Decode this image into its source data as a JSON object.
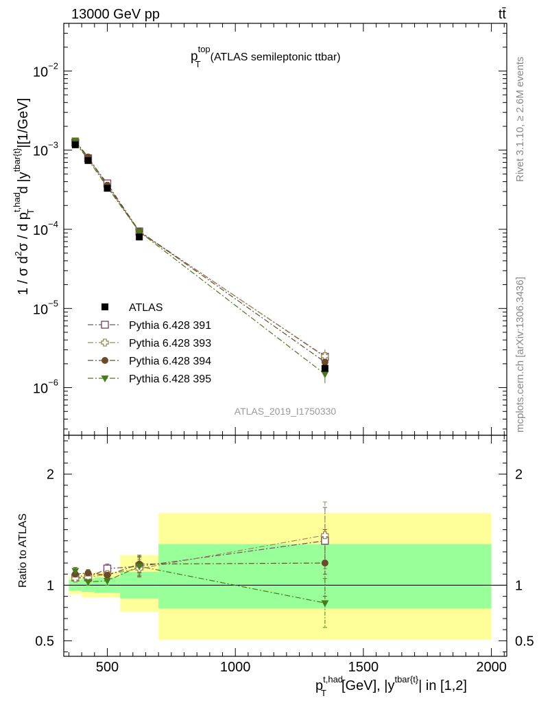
{
  "header": {
    "energy_label": "13000 GeV pp",
    "process_label": "tt̄"
  },
  "side_labels": {
    "rivet": "Rivet 3.1.10, ≥ 2.6M events",
    "mcplots": "mcplots.cern.ch [arXiv:1306.3436]"
  },
  "chart_data": [
    {
      "type": "scatter",
      "panel": "main",
      "title_main": "p",
      "title_sup": "top",
      "title_sub": "T",
      "title_rest": "(ATLAS semileptonic ttbar)",
      "watermark": "ATLAS_2019_I1750330",
      "ylabel": "1 / σ d²σ / d pT^{t,had} d |y^{tbar{t}}|[1/GeV]",
      "yscale": "log",
      "ylim": [
        2.5e-07,
        0.04
      ],
      "xlim": [
        330,
        2060
      ],
      "y_tick_labels": [
        {
          "value": 1e-06,
          "label": "10",
          "exp": "−6"
        },
        {
          "value": 1e-05,
          "label": "10",
          "exp": "−5"
        },
        {
          "value": 0.0001,
          "label": "10",
          "exp": "−4"
        },
        {
          "value": 0.001,
          "label": "10",
          "exp": "−3"
        },
        {
          "value": 0.01,
          "label": "10",
          "exp": "−2"
        }
      ],
      "legend_position": "lower-left",
      "series": [
        {
          "name": "ATLAS",
          "color": "#000000",
          "marker": "filled-square",
          "line": "none",
          "x": [
            375,
            425,
            500,
            625,
            1350
          ],
          "y": [
            0.00117,
            0.00074,
            0.00033,
            8e-05,
            1.75e-06
          ]
        },
        {
          "name": "Pythia 6.428 391",
          "color": "#7b4a6a",
          "marker": "open-square",
          "line": "dashdot",
          "x": [
            375,
            425,
            500,
            625,
            1350
          ],
          "y": [
            0.00125,
            0.00079,
            0.00038,
            9.4e-05,
            2.45e-06
          ]
        },
        {
          "name": "Pythia 6.428 393",
          "color": "#9c8a50",
          "marker": "open-cross",
          "line": "dashdot",
          "x": [
            375,
            425,
            500,
            625,
            1350
          ],
          "y": [
            0.00122,
            0.00077,
            0.000355,
            9.2e-05,
            2.5e-06
          ]
        },
        {
          "name": "Pythia 6.428 394",
          "color": "#6b4a2a",
          "marker": "filled-circle",
          "line": "dashdot",
          "x": [
            375,
            425,
            500,
            625,
            1350
          ],
          "y": [
            0.0013,
            0.00082,
            0.00036,
            9.5e-05,
            2.1e-06
          ]
        },
        {
          "name": "Pythia 6.428 395",
          "color": "#4a7a1a",
          "marker": "filled-triangle-down",
          "line": "dashdot",
          "x": [
            375,
            425,
            500,
            625,
            1350
          ],
          "y": [
            0.00133,
            0.00076,
            0.00034,
            9.3e-05,
            1.48e-06
          ]
        }
      ]
    },
    {
      "type": "scatter",
      "panel": "ratio",
      "ylabel": "Ratio to ATLAS",
      "xlabel_main": "p",
      "xlabel_sup": "t,had",
      "xlabel_sub": "T",
      "xlabel_rest_a": "[GeV], |y",
      "xlabel_sup2": "tbar{t}",
      "xlabel_rest_b": "| in [1,2]",
      "ylim": [
        0.36,
        2.35
      ],
      "xlim": [
        330,
        2060
      ],
      "x_tick_labels": [
        {
          "value": 500,
          "label": "500"
        },
        {
          "value": 1000,
          "label": "1000"
        },
        {
          "value": 1500,
          "label": "1500"
        },
        {
          "value": 2000,
          "label": "2000"
        }
      ],
      "y_tick_labels": [
        {
          "value": 0.5,
          "label": "0.5"
        },
        {
          "value": 1,
          "label": "1"
        },
        {
          "value": 2,
          "label": "2"
        }
      ],
      "bands": [
        {
          "x0": 350,
          "x1": 400,
          "stat": [
            0.95,
            1.05
          ],
          "total": [
            0.92,
            1.08
          ]
        },
        {
          "x0": 400,
          "x1": 450,
          "stat": [
            0.94,
            1.06
          ],
          "total": [
            0.89,
            1.11
          ]
        },
        {
          "x0": 450,
          "x1": 550,
          "stat": [
            0.93,
            1.07
          ],
          "total": [
            0.89,
            1.12
          ]
        },
        {
          "x0": 550,
          "x1": 700,
          "stat": [
            0.88,
            1.12
          ],
          "total": [
            0.76,
            1.27
          ]
        },
        {
          "x0": 700,
          "x1": 2000,
          "stat": [
            0.79,
            1.37
          ],
          "total": [
            0.51,
            1.65
          ]
        }
      ],
      "band_colors": {
        "stat": "#99ff99",
        "total": "#ffff99"
      },
      "series": [
        {
          "name": "Pythia 6.428 391",
          "color": "#7b4a6a",
          "marker": "open-square",
          "x": [
            375,
            425,
            500,
            625,
            1350
          ],
          "y": [
            1.07,
            1.07,
            1.15,
            1.17,
            1.4
          ],
          "err": [
            0.03,
            0.03,
            0.04,
            0.08,
            0.3
          ]
        },
        {
          "name": "Pythia 6.428 393",
          "color": "#9c8a50",
          "marker": "open-cross",
          "x": [
            375,
            425,
            500,
            625,
            1350
          ],
          "y": [
            1.06,
            1.07,
            1.1,
            1.15,
            1.45
          ],
          "err": [
            0.03,
            0.04,
            0.04,
            0.08,
            0.3
          ]
        },
        {
          "name": "Pythia 6.428 394",
          "color": "#6b4a2a",
          "marker": "filled-circle",
          "x": [
            375,
            425,
            500,
            625,
            1350
          ],
          "y": [
            1.1,
            1.11,
            1.09,
            1.19,
            1.2
          ],
          "err": [
            0.03,
            0.03,
            0.04,
            0.08,
            0.3
          ]
        },
        {
          "name": "Pythia 6.428 395",
          "color": "#4a7a1a",
          "marker": "filled-triangle-down",
          "x": [
            375,
            425,
            500,
            625,
            1350
          ],
          "y": [
            1.13,
            1.03,
            1.04,
            1.17,
            0.84
          ],
          "err": [
            0.03,
            0.03,
            0.04,
            0.09,
            0.22
          ]
        }
      ]
    }
  ]
}
